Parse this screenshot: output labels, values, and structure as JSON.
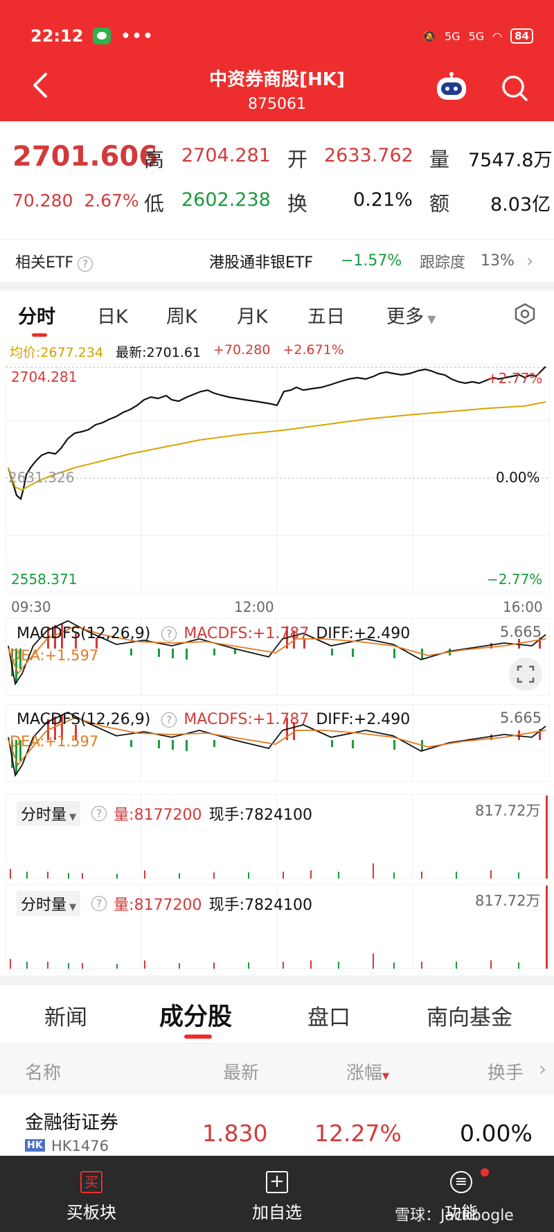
{
  "status": {
    "time": "22:12",
    "dots": "•••",
    "signal1": "5G",
    "signal2": "5G",
    "battery": "84"
  },
  "header": {
    "title": "中资券商股[HK]",
    "code": "875061"
  },
  "quote": {
    "price": "2701.606",
    "change": "70.280",
    "change_pct": "2.67%",
    "high_label": "高",
    "high": "2704.281",
    "open_label": "开",
    "open": "2633.762",
    "vol_label": "量",
    "volume": "7547.8万",
    "low_label": "低",
    "low": "2602.238",
    "turn_label": "换",
    "turnover": "0.21%",
    "amt_label": "额",
    "amount": "8.03亿"
  },
  "etf": {
    "label": "相关ETF",
    "name": "港股通非银ETF",
    "change": "−1.57%",
    "track_label": "跟踪度",
    "track": "13%"
  },
  "tabs": [
    "分时",
    "日K",
    "周K",
    "月K",
    "五日",
    "更多"
  ],
  "legend": {
    "avg": "均价:2677.234",
    "latest": "最新:2701.61",
    "chg": "+70.280",
    "pct": "+2.671%"
  },
  "chart": {
    "top": "2704.281",
    "mid": "2631.326",
    "bottom": "2558.371",
    "top_pct": "+2.77%",
    "mid_pct": "0.00%",
    "bottom_pct": "−2.77%",
    "t1": "09:30",
    "t2": "12:00",
    "t3": "16:00"
  },
  "macd": {
    "label": "MACDFS(12,26,9)",
    "macdfs": "MACDFS:+1.787",
    "diff": "DIFF:+2.490",
    "dea": "DEA:+1.597",
    "max": "5.665"
  },
  "volume": {
    "label": "分时量",
    "vol": "量:8177200",
    "cur": "现手:7824100",
    "max": "817.72万"
  },
  "bottom_tabs": [
    "新闻",
    "成分股",
    "盘口",
    "南向基金"
  ],
  "table": {
    "headers": [
      "名称",
      "最新",
      "涨幅",
      "换手"
    ],
    "rows": [
      {
        "name": "金融街证券",
        "market": "HK",
        "code": "HK1476",
        "latest": "1.830",
        "change": "12.27%",
        "turnover": "0.00%"
      }
    ]
  },
  "bottom_bar": {
    "buy": "买板块",
    "add": "加自选",
    "func": "功能",
    "watermark": "雪球：Jackbogle"
  },
  "colors": {
    "red": "#ee2e2e",
    "up": "#d23a3a",
    "down": "#1a9a3c"
  }
}
